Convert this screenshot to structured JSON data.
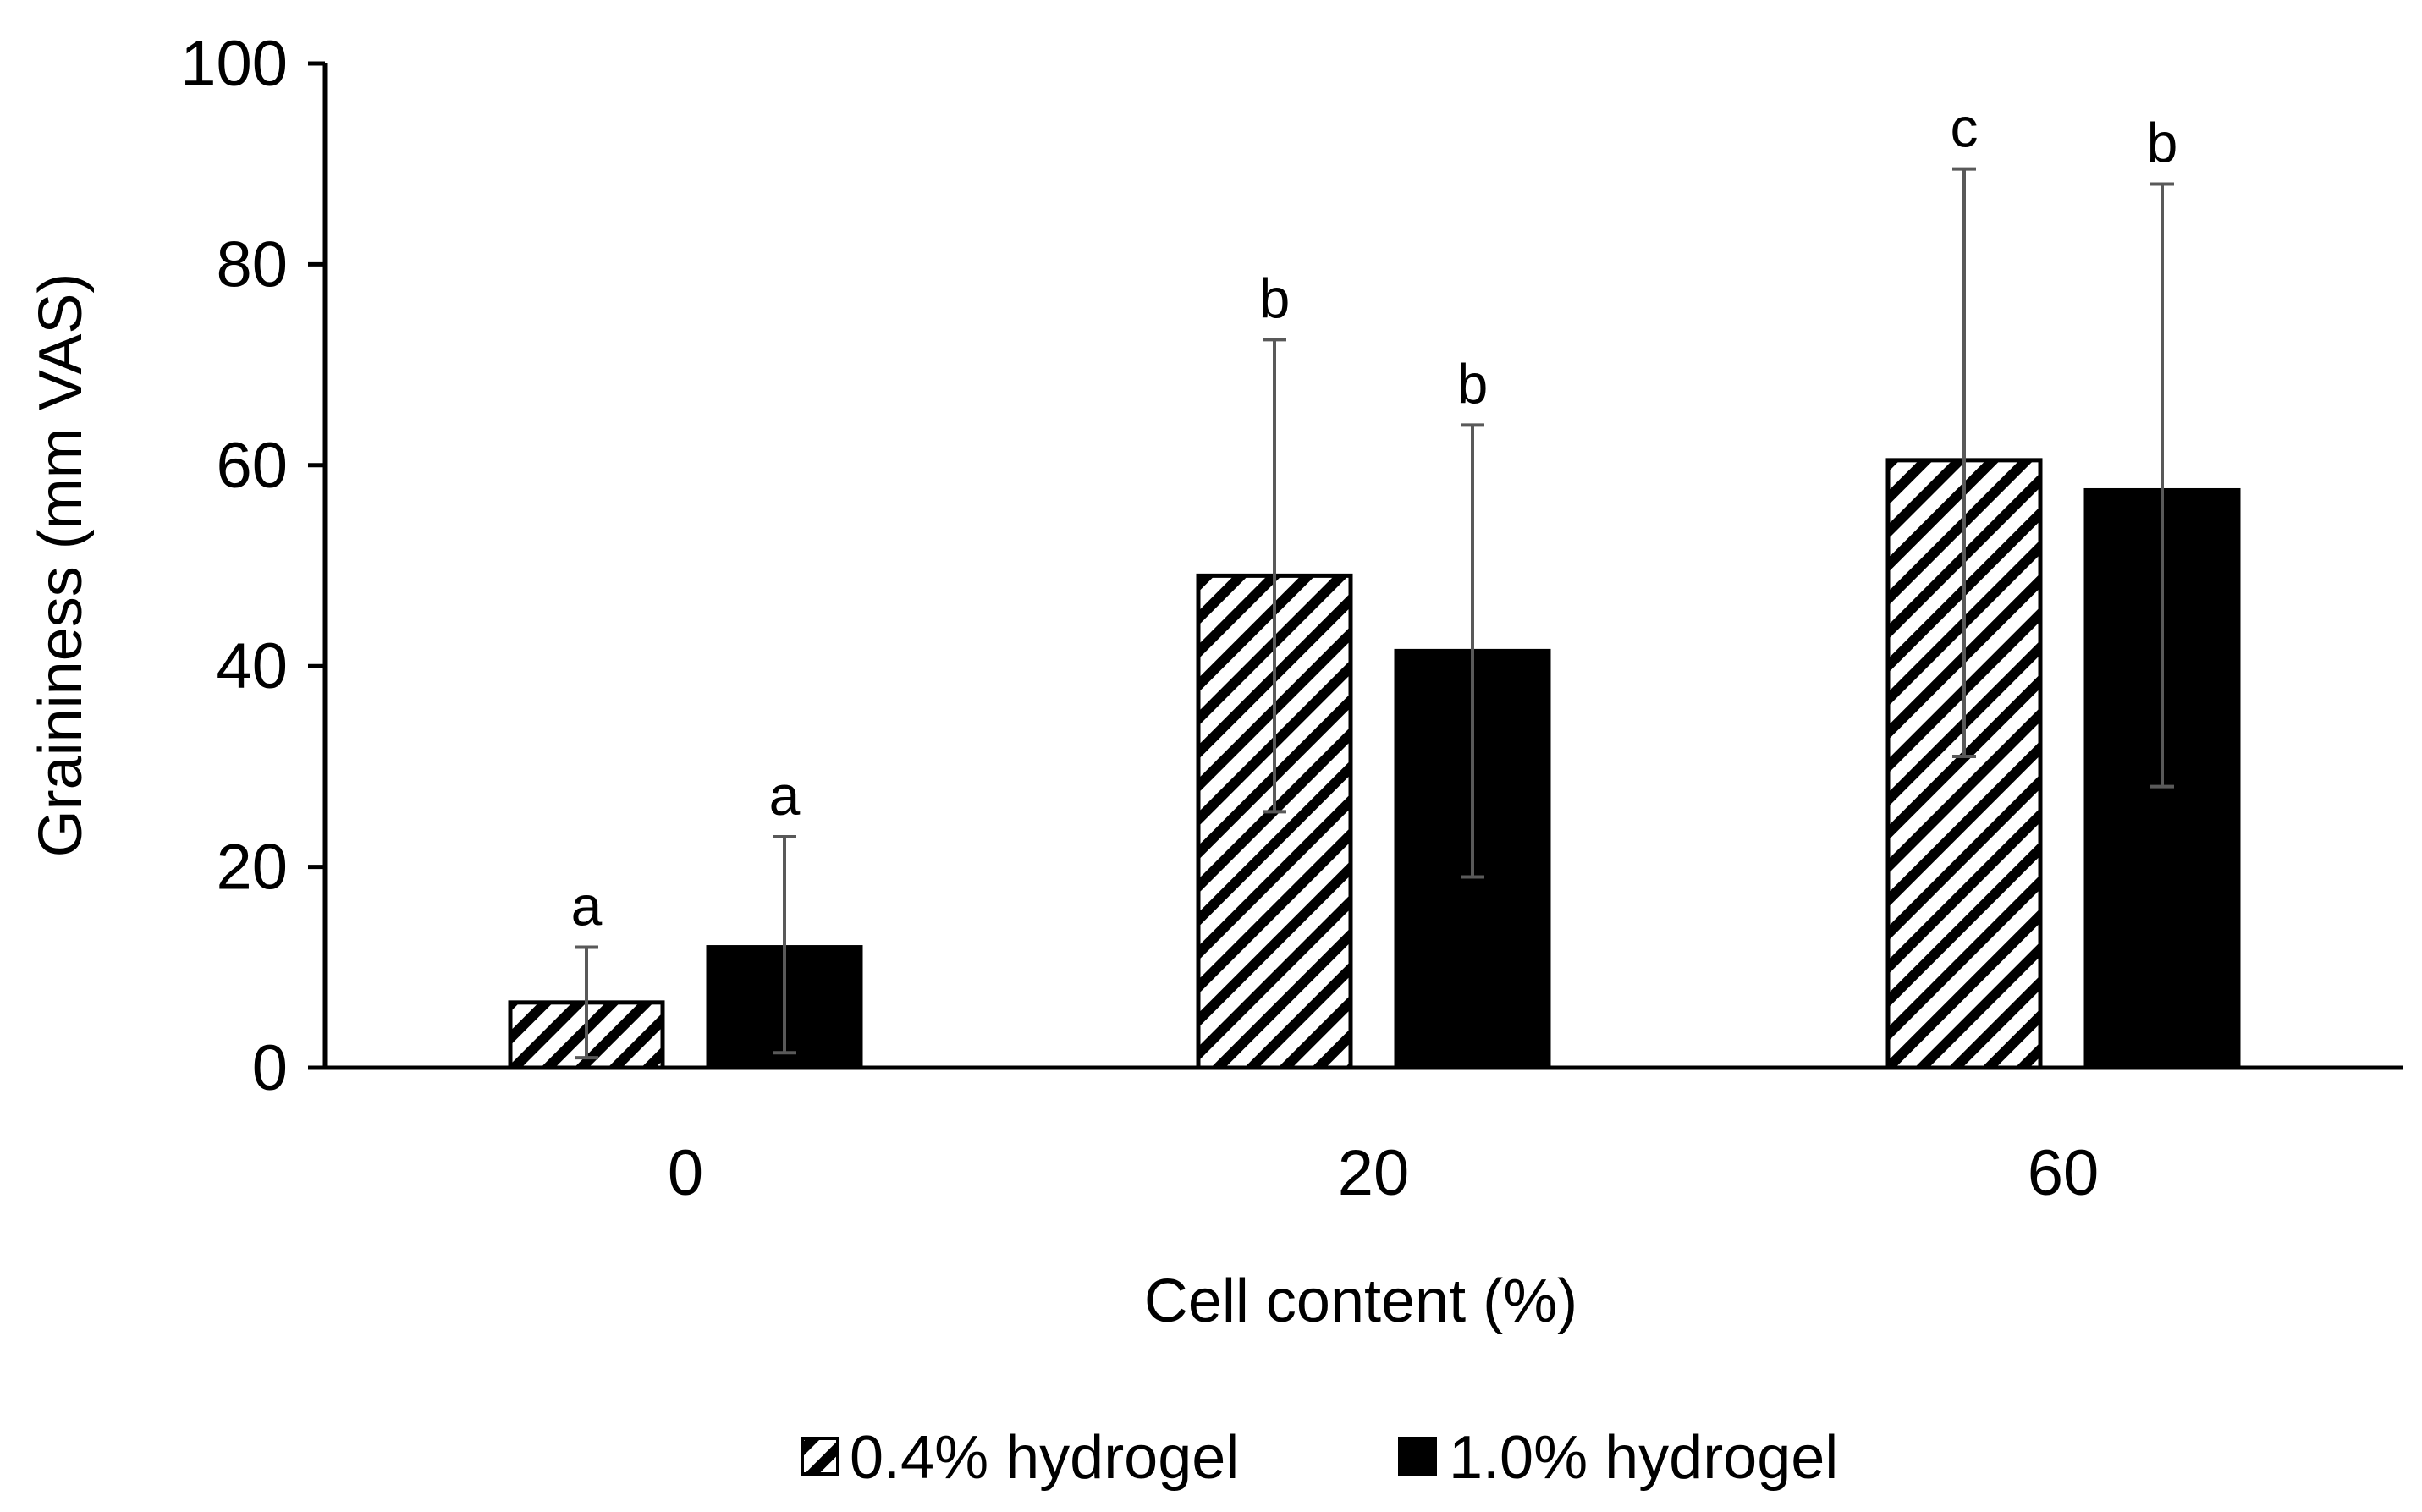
{
  "chart_data": {
    "type": "bar",
    "categories": [
      "0",
      "20",
      "60"
    ],
    "xlabel": "Cell content (%)",
    "ylabel": "Graininess (mm VAS)",
    "ylim": [
      0,
      100
    ],
    "yticks": [
      0,
      20,
      40,
      60,
      80,
      100
    ],
    "grid": false,
    "legend_position": "bottom",
    "series": [
      {
        "name": "0.4% hydrogel",
        "fill": "hatched",
        "color": "#000000",
        "values": [
          6.5,
          49,
          60.5
        ],
        "error_low": [
          1,
          25.5,
          31
        ],
        "error_high": [
          12,
          72.5,
          89.5
        ],
        "labels": [
          "a",
          "b",
          "c"
        ]
      },
      {
        "name": "1.0% hydrogel",
        "fill": "solid",
        "color": "#000000",
        "values": [
          12,
          41.5,
          57.5
        ],
        "error_low": [
          1.5,
          19,
          28
        ],
        "error_high": [
          23,
          64,
          88
        ],
        "labels": [
          "a",
          "b",
          "b"
        ]
      }
    ]
  }
}
